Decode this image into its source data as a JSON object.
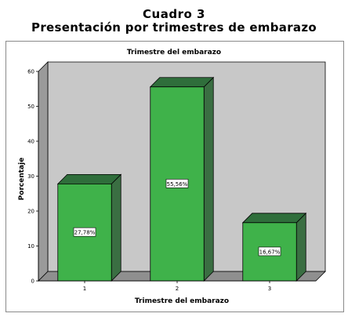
{
  "heading": {
    "line1": "Cuadro 3",
    "line2": "Presentación por trimestres de embarazo"
  },
  "chart_data": {
    "type": "bar",
    "title": "Trimestre del embarazo",
    "xlabel": "Trimestre del embarazo",
    "ylabel": "Porcentaje",
    "categories": [
      "1",
      "2",
      "3"
    ],
    "values": [
      27.78,
      55.56,
      16.67
    ],
    "data_labels": [
      "27,78%",
      "55,56%",
      "16,67%"
    ],
    "ylim": [
      0,
      60
    ],
    "yticks": [
      0,
      10,
      20,
      30,
      40,
      50,
      60
    ],
    "grid": false,
    "style": "3d",
    "colors": {
      "bar_front": "#3fb24a",
      "bar_top": "#2f6e3b",
      "bar_side": "#3a6e42",
      "wall": "#c8c8c8",
      "floor": "#8f8f8f",
      "left_wall": "#9a9a9a"
    }
  }
}
